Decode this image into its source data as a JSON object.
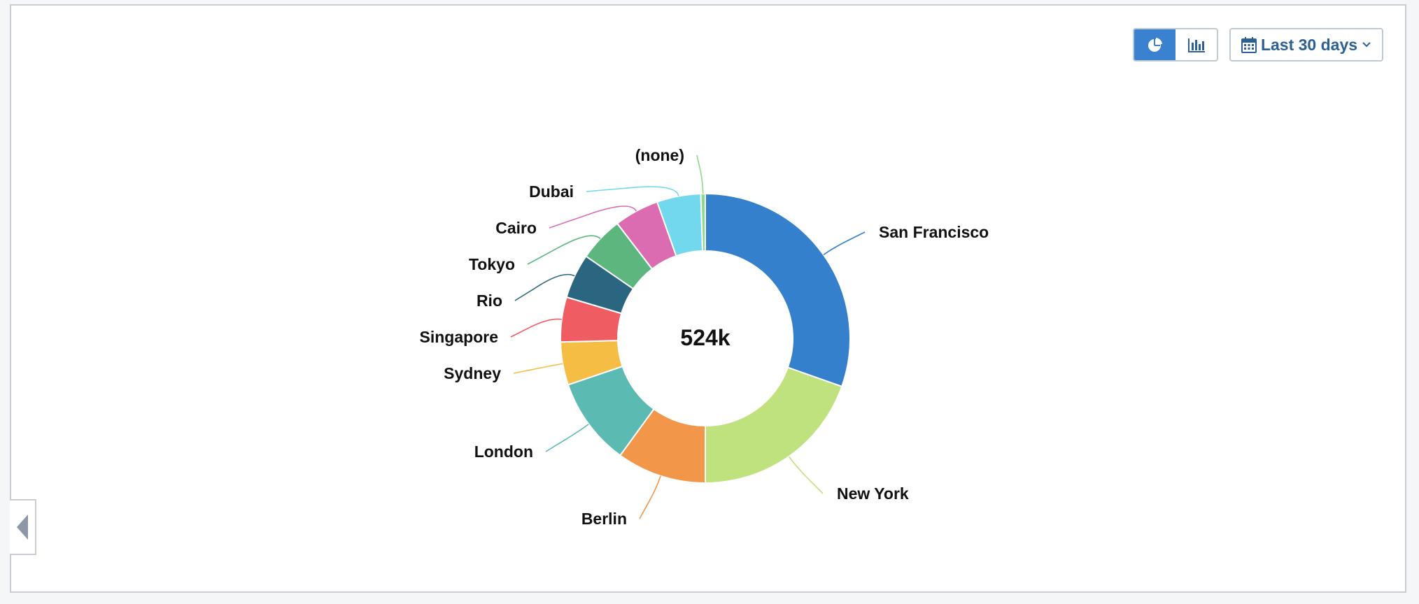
{
  "controls": {
    "date_range_label": "Last 30 days",
    "view_modes": [
      {
        "name": "pie-view",
        "icon": "pie-chart-icon",
        "active": true
      },
      {
        "name": "bar-view",
        "icon": "bar-chart-icon",
        "active": false
      }
    ],
    "accent_color": "#3a82d0"
  },
  "chart_data": {
    "type": "pie",
    "center_label": "524k",
    "slices": [
      {
        "label": "San Francisco",
        "value": 0.304,
        "color": "#3580cc"
      },
      {
        "label": "New York",
        "value": 0.196,
        "color": "#c0e27e"
      },
      {
        "label": "Berlin",
        "value": 0.1,
        "color": "#f2964a"
      },
      {
        "label": "London",
        "value": 0.098,
        "color": "#5bbbb3"
      },
      {
        "label": "Sydney",
        "value": 0.048,
        "color": "#f6bd44"
      },
      {
        "label": "Singapore",
        "value": 0.05,
        "color": "#ef5d62"
      },
      {
        "label": "Rio",
        "value": 0.05,
        "color": "#2b6680"
      },
      {
        "label": "Tokyo",
        "value": 0.05,
        "color": "#5cb67e"
      },
      {
        "label": "Cairo",
        "value": 0.05,
        "color": "#dc6cb1"
      },
      {
        "label": "Dubai",
        "value": 0.049,
        "color": "#72d8ee"
      },
      {
        "label": "(none)",
        "value": 0.005,
        "color": "#8fd98d"
      }
    ]
  }
}
